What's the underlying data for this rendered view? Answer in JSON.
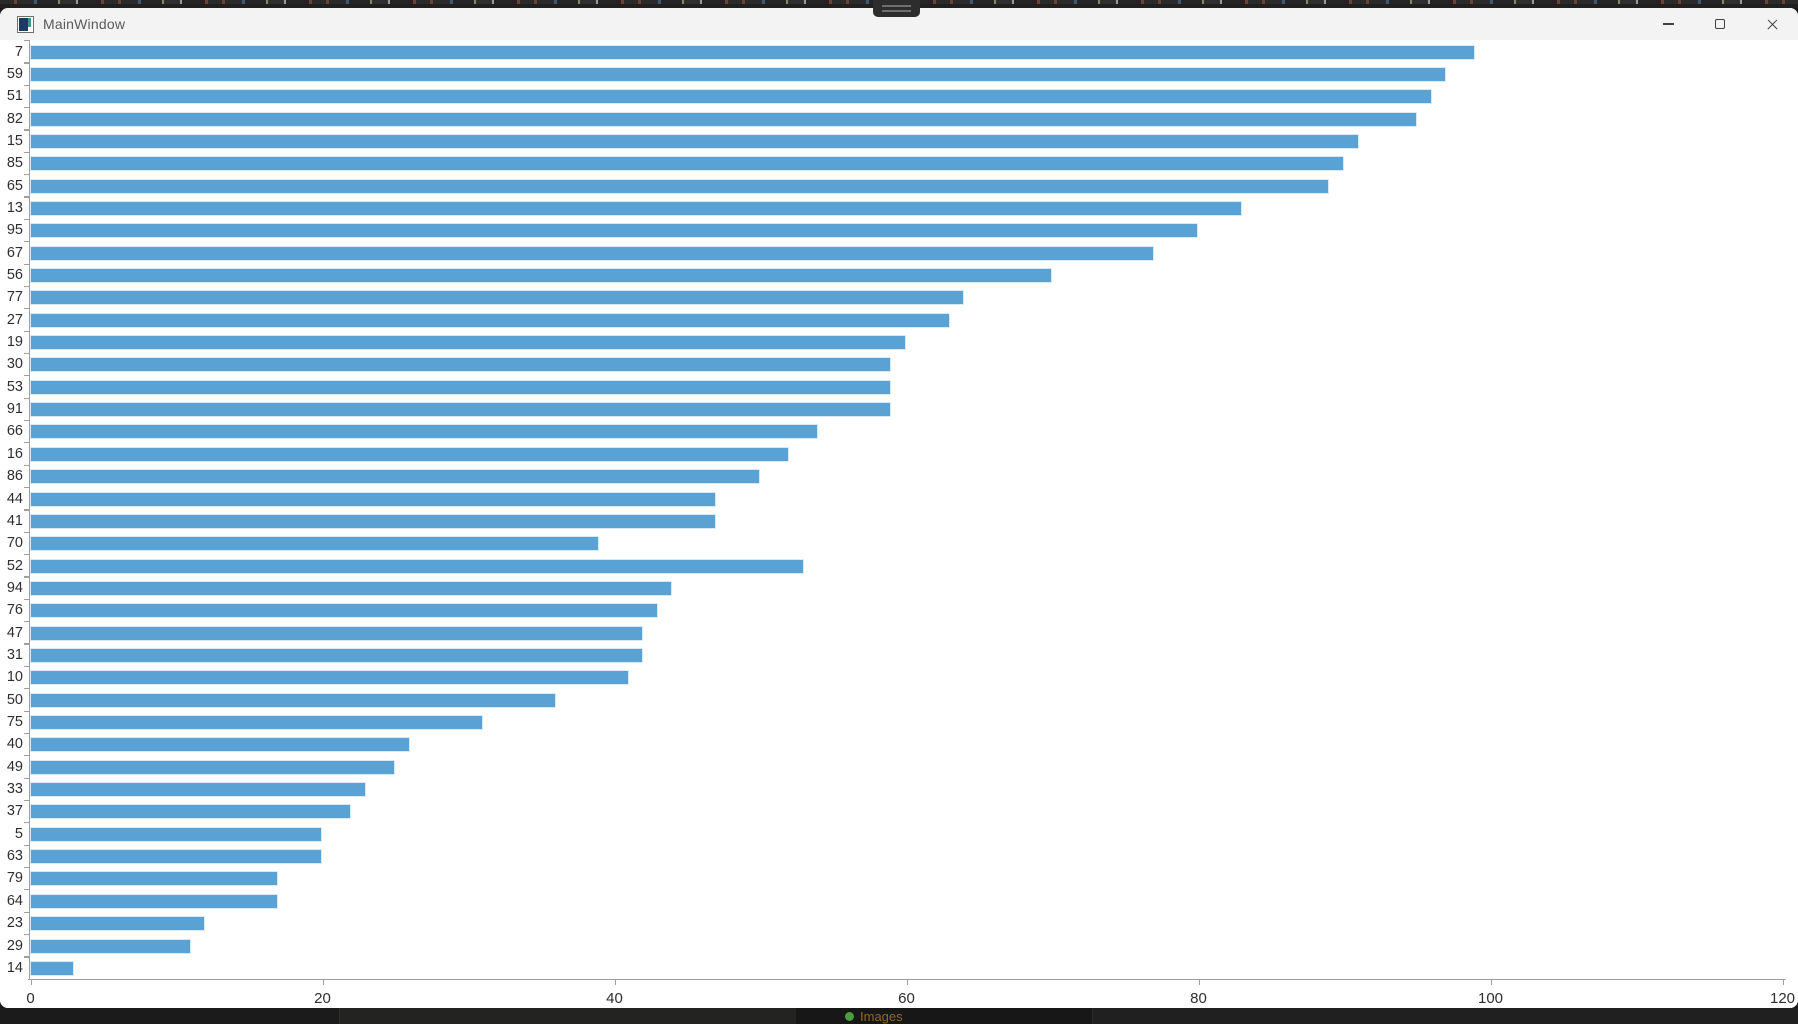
{
  "window": {
    "title": "MainWindow",
    "controls": {
      "minimize": "minimize",
      "maximize": "maximize",
      "close": "close"
    }
  },
  "taskbar": {
    "item_label": "Images"
  },
  "colors": {
    "bar_fill": "#5aa2d4",
    "bar_edge": "#d9e9f6",
    "axis": "#9f9f9f",
    "tick_label_text": "#2e2e2e",
    "titlebar_bg": "#f3f3f3",
    "title_text": "#595959",
    "desktop_strip": "#1a1a1a"
  },
  "chart_data": {
    "type": "bar",
    "orientation": "horizontal",
    "title": "",
    "xlabel": "",
    "ylabel": "",
    "xlim": [
      0,
      120
    ],
    "x_ticks": [
      0,
      20,
      40,
      60,
      80,
      100,
      120
    ],
    "grid": false,
    "legend": null,
    "categories": [
      "7",
      "59",
      "51",
      "82",
      "15",
      "85",
      "65",
      "13",
      "95",
      "67",
      "56",
      "77",
      "27",
      "19",
      "30",
      "53",
      "91",
      "66",
      "16",
      "86",
      "44",
      "41",
      "70",
      "52",
      "94",
      "76",
      "47",
      "31",
      "10",
      "50",
      "75",
      "40",
      "49",
      "33",
      "37",
      "5",
      "63",
      "79",
      "64",
      "23",
      "29",
      "14"
    ],
    "values": [
      99,
      97,
      96,
      95,
      91,
      90,
      89,
      83,
      80,
      77,
      70,
      64,
      63,
      60,
      59,
      59,
      59,
      54,
      52,
      50,
      47,
      47,
      39,
      53,
      44,
      43,
      42,
      42,
      41,
      36,
      31,
      26,
      25,
      23,
      22,
      20,
      20,
      17,
      17,
      12,
      11,
      3
    ]
  }
}
